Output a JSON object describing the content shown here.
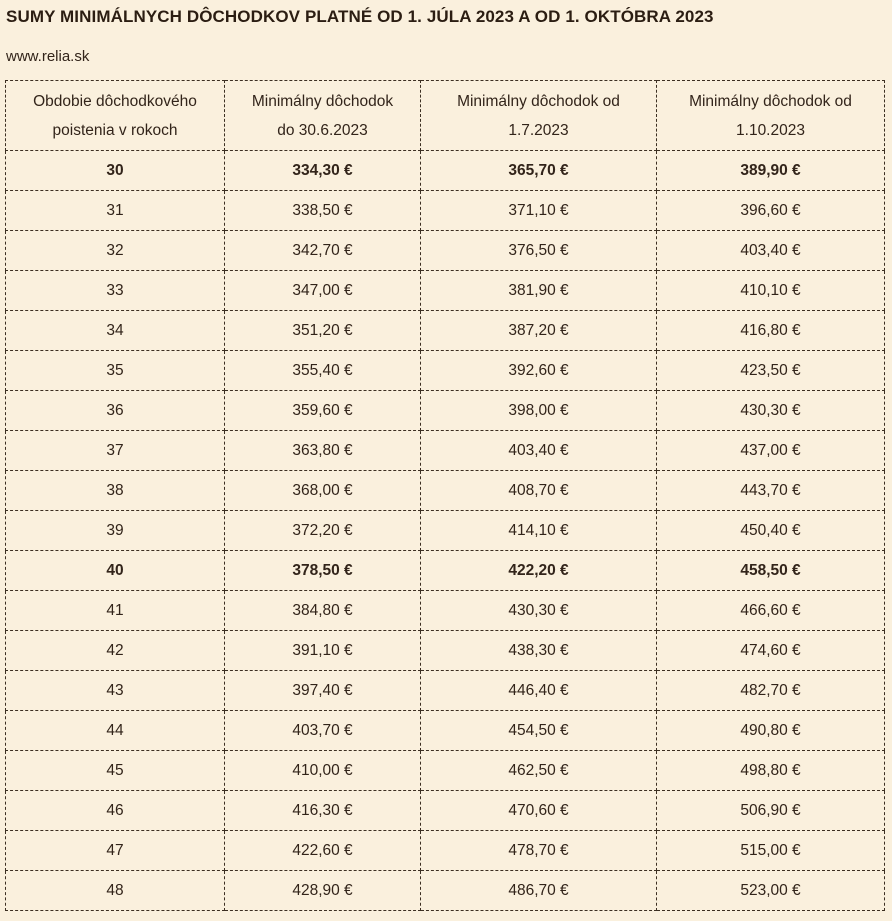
{
  "page": {
    "title": "SUMY MINIMÁLNYCH DÔCHODKOV PLATNÉ OD 1. JÚLA 2023 A OD 1. OKTÓBRA 2023",
    "source": "www.relia.sk"
  },
  "colors": {
    "background": "#FAF0DD",
    "text": "#32241A",
    "title_text": "#2B1D12",
    "border": "#3C2F22"
  },
  "table": {
    "headers": [
      {
        "line1": "Obdobie dôchodkového",
        "line2": "poistenia v rokoch"
      },
      {
        "line1": "Minimálny dôchodok",
        "line2": "do 30.6.2023"
      },
      {
        "line1": "Minimálny dôchodok od",
        "line2": "1.7.2023"
      },
      {
        "line1": "Minimálny dôchodok od",
        "line2": "1.10.2023"
      }
    ],
    "rows": [
      {
        "years": "30",
        "before_jul_2023": "334,30 €",
        "from_jul_2023": "365,70 €",
        "from_oct_2023": "389,90 €",
        "bold": true
      },
      {
        "years": "31",
        "before_jul_2023": "338,50 €",
        "from_jul_2023": "371,10 €",
        "from_oct_2023": "396,60 €",
        "bold": false
      },
      {
        "years": "32",
        "before_jul_2023": "342,70 €",
        "from_jul_2023": "376,50 €",
        "from_oct_2023": "403,40 €",
        "bold": false
      },
      {
        "years": "33",
        "before_jul_2023": "347,00 €",
        "from_jul_2023": "381,90 €",
        "from_oct_2023": "410,10 €",
        "bold": false
      },
      {
        "years": "34",
        "before_jul_2023": "351,20 €",
        "from_jul_2023": "387,20 €",
        "from_oct_2023": "416,80 €",
        "bold": false
      },
      {
        "years": "35",
        "before_jul_2023": "355,40 €",
        "from_jul_2023": "392,60 €",
        "from_oct_2023": "423,50 €",
        "bold": false
      },
      {
        "years": "36",
        "before_jul_2023": "359,60 €",
        "from_jul_2023": "398,00 €",
        "from_oct_2023": "430,30 €",
        "bold": false
      },
      {
        "years": "37",
        "before_jul_2023": "363,80 €",
        "from_jul_2023": "403,40 €",
        "from_oct_2023": "437,00 €",
        "bold": false
      },
      {
        "years": "38",
        "before_jul_2023": "368,00 €",
        "from_jul_2023": "408,70 €",
        "from_oct_2023": "443,70 €",
        "bold": false
      },
      {
        "years": "39",
        "before_jul_2023": "372,20 €",
        "from_jul_2023": "414,10 €",
        "from_oct_2023": "450,40 €",
        "bold": false
      },
      {
        "years": "40",
        "before_jul_2023": "378,50 €",
        "from_jul_2023": "422,20 €",
        "from_oct_2023": "458,50 €",
        "bold": true
      },
      {
        "years": "41",
        "before_jul_2023": "384,80 €",
        "from_jul_2023": "430,30 €",
        "from_oct_2023": "466,60 €",
        "bold": false
      },
      {
        "years": "42",
        "before_jul_2023": "391,10 €",
        "from_jul_2023": "438,30 €",
        "from_oct_2023": "474,60 €",
        "bold": false
      },
      {
        "years": "43",
        "before_jul_2023": "397,40 €",
        "from_jul_2023": "446,40 €",
        "from_oct_2023": "482,70 €",
        "bold": false
      },
      {
        "years": "44",
        "before_jul_2023": "403,70 €",
        "from_jul_2023": "454,50 €",
        "from_oct_2023": "490,80 €",
        "bold": false
      },
      {
        "years": "45",
        "before_jul_2023": "410,00 €",
        "from_jul_2023": "462,50 €",
        "from_oct_2023": "498,80 €",
        "bold": false
      },
      {
        "years": "46",
        "before_jul_2023": "416,30 €",
        "from_jul_2023": "470,60 €",
        "from_oct_2023": "506,90 €",
        "bold": false
      },
      {
        "years": "47",
        "before_jul_2023": "422,60 €",
        "from_jul_2023": "478,70 €",
        "from_oct_2023": "515,00 €",
        "bold": false
      },
      {
        "years": "48",
        "before_jul_2023": "428,90 €",
        "from_jul_2023": "486,70 €",
        "from_oct_2023": "523,00 €",
        "bold": false
      }
    ]
  }
}
